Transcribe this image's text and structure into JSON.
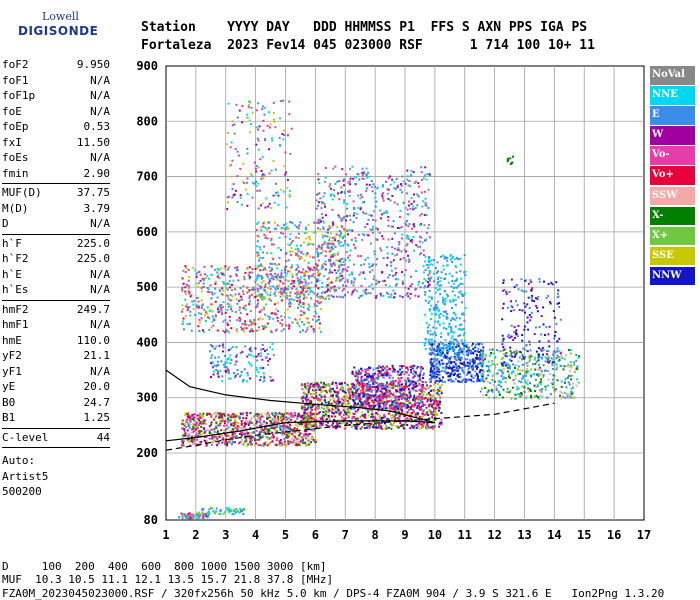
{
  "logo": {
    "brand": "Lowell",
    "product": "DIGISONDE"
  },
  "header": {
    "line1": "Station    YYYY DAY   DDD HHMMSS P1  FFS S AXN PPS IGA PS",
    "line2": "Fortaleza  2023 Fev14 045 023000 RSF      1 714 100 10+ 11"
  },
  "params": {
    "group1": [
      {
        "k": "foF2",
        "v": "9.950"
      },
      {
        "k": "foF1",
        "v": "N/A"
      },
      {
        "k": "foF1p",
        "v": "N/A"
      },
      {
        "k": "foE",
        "v": "N/A"
      },
      {
        "k": "foEp",
        "v": "0.53"
      },
      {
        "k": "fxI",
        "v": "11.50"
      },
      {
        "k": "foEs",
        "v": "N/A"
      },
      {
        "k": "fmin",
        "v": "2.90"
      }
    ],
    "group2": [
      {
        "k": "MUF(D)",
        "v": "37.75"
      },
      {
        "k": "M(D)",
        "v": "3.79"
      },
      {
        "k": "D",
        "v": "N/A"
      }
    ],
    "group3": [
      {
        "k": "h`F",
        "v": "225.0"
      },
      {
        "k": "h`F2",
        "v": "225.0"
      },
      {
        "k": "h`E",
        "v": "N/A"
      },
      {
        "k": "h`Es",
        "v": "N/A"
      }
    ],
    "group4": [
      {
        "k": "hmF2",
        "v": "249.7"
      },
      {
        "k": "hmF1",
        "v": "N/A"
      },
      {
        "k": "hmE",
        "v": "110.0"
      },
      {
        "k": "yF2",
        "v": "21.1"
      },
      {
        "k": "yF1",
        "v": "N/A"
      },
      {
        "k": "yE",
        "v": "20.0"
      },
      {
        "k": "B0",
        "v": "24.7"
      },
      {
        "k": "B1",
        "v": "1.25"
      }
    ],
    "group5": [
      {
        "k": "C-level",
        "v": "44"
      }
    ],
    "auto_lines": [
      "Auto:",
      "Artist5",
      "500200"
    ]
  },
  "legend": [
    {
      "label": "NoVal",
      "color": "#888888"
    },
    {
      "label": "NNE",
      "color": "#00d8f0"
    },
    {
      "label": "E",
      "color": "#3a8ce8"
    },
    {
      "label": "W",
      "color": "#a000a0"
    },
    {
      "label": "Vo-",
      "color": "#e83ca8"
    },
    {
      "label": "Vo+",
      "color": "#e8003c"
    },
    {
      "label": "SSW",
      "color": "#f4a8a8"
    },
    {
      "label": "X-",
      "color": "#008000"
    },
    {
      "label": "X+",
      "color": "#70c840"
    },
    {
      "label": "SSE",
      "color": "#c8c800"
    },
    {
      "label": "NNW",
      "color": "#1414c8"
    }
  ],
  "footer": {
    "d_line": "D     100  200  400  600  800 1000 1500 3000 [km]",
    "muf_line": "MUF  10.3 10.5 11.1 12.1 13.5 15.7 21.8 37.8 [MHz]",
    "file_line": "FZA0M_2023045023000.RSF / 320fx256h 50 kHz 5.0 km / DPS-4 FZA0M 904 / 3.9 S 321.6 E   Ion2Png 1.3.20"
  },
  "chart_data": {
    "type": "scatter",
    "xlim": [
      1,
      17
    ],
    "ylim": [
      80,
      900
    ],
    "x_ticks": [
      1,
      2,
      3,
      4,
      5,
      6,
      7,
      8,
      9,
      10,
      11,
      12,
      13,
      14,
      15,
      16,
      17
    ],
    "y_ticks": [
      80,
      200,
      300,
      400,
      500,
      600,
      700,
      800,
      900
    ],
    "grid": true,
    "legend_position": "right",
    "clusters": [
      {
        "name": "E-trace",
        "x": [
          1.4,
          2.4
        ],
        "y": [
          84,
          94
        ],
        "n": 60,
        "colors": [
          "#e8003c",
          "#e83ca8",
          "#00d8f0",
          "#888888"
        ]
      },
      {
        "name": "E-trace-high",
        "x": [
          2.0,
          3.6
        ],
        "y": [
          92,
          104
        ],
        "n": 60,
        "colors": [
          "#00d8f0",
          "#3a8ce8",
          "#70c840"
        ]
      },
      {
        "name": "F-low",
        "x": [
          1.5,
          6.0
        ],
        "y": [
          215,
          275
        ],
        "n": 900,
        "colors": [
          "#e8003c",
          "#e83ca8",
          "#a000a0",
          "#008000",
          "#f4a8a8",
          "#c8c800",
          "#3a8ce8"
        ]
      },
      {
        "name": "F-main",
        "x": [
          5.5,
          10.2
        ],
        "y": [
          245,
          330
        ],
        "n": 1100,
        "colors": [
          "#e8003c",
          "#e83ca8",
          "#a000a0",
          "#008000",
          "#70c840",
          "#c8c800",
          "#1414c8"
        ]
      },
      {
        "name": "F-rise",
        "x": [
          7.2,
          9.6
        ],
        "y": [
          280,
          360
        ],
        "n": 500,
        "colors": [
          "#e8003c",
          "#e83ca8",
          "#1414c8",
          "#3a8ce8"
        ]
      },
      {
        "name": "F-high-blue",
        "x": [
          9.8,
          11.6
        ],
        "y": [
          330,
          400
        ],
        "n": 420,
        "colors": [
          "#1414c8",
          "#3a8ce8"
        ]
      },
      {
        "name": "F-high-right",
        "x": [
          11.5,
          14.8
        ],
        "y": [
          300,
          390
        ],
        "n": 400,
        "colors": [
          "#00d8f0",
          "#3a8ce8",
          "#f4a8a8",
          "#70c840",
          "#008000"
        ]
      },
      {
        "name": "Multi-hop-1",
        "x": [
          1.5,
          6.2
        ],
        "y": [
          420,
          540
        ],
        "n": 600,
        "colors": [
          "#e8003c",
          "#e83ca8",
          "#c8c800",
          "#00d8f0",
          "#3a8ce8",
          "#888888"
        ]
      },
      {
        "name": "Multi-hop-2",
        "x": [
          4.0,
          7.0
        ],
        "y": [
          480,
          620
        ],
        "n": 420,
        "colors": [
          "#00d8f0",
          "#3a8ce8",
          "#e83ca8",
          "#c8c800"
        ]
      },
      {
        "name": "Multi-hop-3",
        "x": [
          6.0,
          9.8
        ],
        "y": [
          480,
          720
        ],
        "n": 600,
        "colors": [
          "#00d8f0",
          "#3a8ce8",
          "#e83ca8",
          "#888888",
          "#a000a0"
        ]
      },
      {
        "name": "Multi-hop-4",
        "x": [
          9.6,
          11.0
        ],
        "y": [
          380,
          560
        ],
        "n": 280,
        "colors": [
          "#00d8f0",
          "#3a8ce8"
        ]
      },
      {
        "name": "Right-spread",
        "x": [
          12.2,
          14.2
        ],
        "y": [
          360,
          520
        ],
        "n": 180,
        "colors": [
          "#1414c8",
          "#a000a0",
          "#3a8ce8"
        ]
      },
      {
        "name": "High-sparse",
        "x": [
          3.0,
          5.2
        ],
        "y": [
          640,
          840
        ],
        "n": 160,
        "colors": [
          "#c8c800",
          "#e83ca8",
          "#a000a0",
          "#3a8ce8",
          "#00d8f0"
        ]
      },
      {
        "name": "Mid-sparse",
        "x": [
          2.4,
          4.6
        ],
        "y": [
          330,
          400
        ],
        "n": 140,
        "colors": [
          "#00d8f0",
          "#3a8ce8",
          "#a000a0"
        ]
      },
      {
        "name": "Marker-12.4",
        "x": [
          12.4,
          12.6
        ],
        "y": [
          722,
          738
        ],
        "n": 8,
        "colors": [
          "#008000"
        ]
      }
    ],
    "black_trace": [
      [
        1,
        350
      ],
      [
        1.8,
        320
      ],
      [
        3,
        305
      ],
      [
        4.5,
        295
      ],
      [
        6,
        288
      ],
      [
        7.5,
        282
      ],
      [
        8.5,
        276
      ],
      [
        9.5,
        262
      ],
      [
        10,
        255
      ],
      [
        9,
        258
      ],
      [
        7,
        258
      ],
      [
        5,
        255
      ],
      [
        3.5,
        240
      ],
      [
        2,
        228
      ],
      [
        1,
        222
      ]
    ],
    "dashed_trace": [
      [
        1,
        205
      ],
      [
        2,
        214
      ],
      [
        3,
        224
      ],
      [
        4,
        232
      ],
      [
        5,
        238
      ],
      [
        6,
        244
      ],
      [
        7,
        250
      ],
      [
        8,
        254
      ],
      [
        9,
        258
      ],
      [
        10,
        262
      ],
      [
        11,
        266
      ],
      [
        12,
        270
      ],
      [
        13,
        280
      ],
      [
        14,
        290
      ]
    ]
  }
}
